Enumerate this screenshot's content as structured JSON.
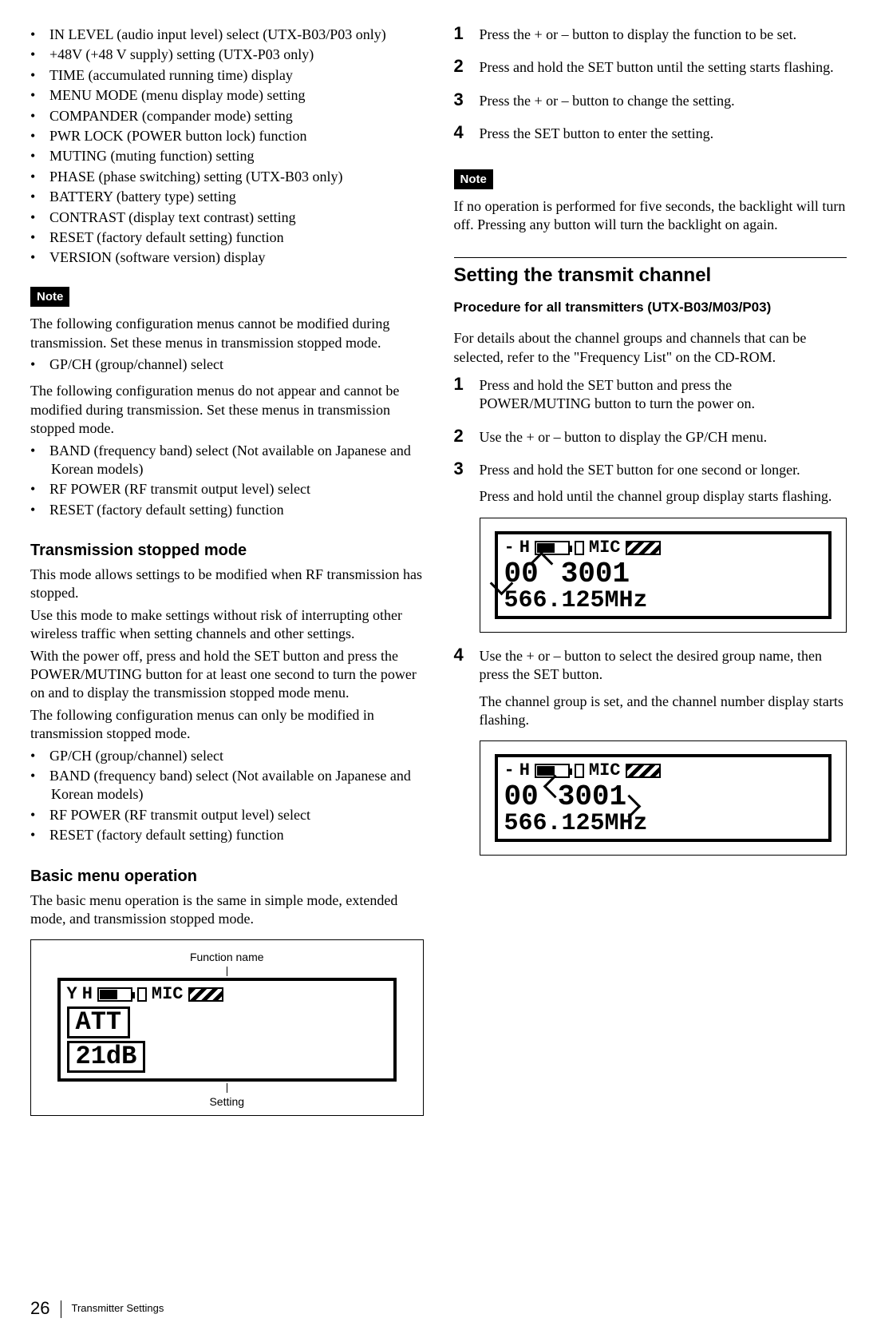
{
  "leftColumn": {
    "topBullets": [
      "IN LEVEL (audio input level) select (UTX-B03/P03 only)",
      "+48V (+48 V supply) setting (UTX-P03 only)",
      "TIME (accumulated running time) display",
      "MENU MODE (menu display mode) setting",
      "COMPANDER (compander mode) setting",
      "PWR LOCK (POWER button lock) function",
      "MUTING (muting function) setting",
      "PHASE (phase switching) setting (UTX-B03 only)",
      "BATTERY (battery type) setting",
      "CONTRAST (display text contrast) setting",
      "RESET (factory default setting) function",
      "VERSION (software version) display"
    ],
    "noteLabel": "Note",
    "note1p1": "The following configuration menus cannot be modified during transmission. Set these menus in transmission stopped mode.",
    "note1b": [
      "GP/CH (group/channel) select"
    ],
    "note1p2": "The following configuration menus do not appear and cannot be modified during transmission. Set these menus in transmission stopped mode.",
    "note1b2": [
      "BAND (frequency band) select (Not available on Japanese and Korean models)",
      "RF POWER (RF transmit output level) select",
      "RESET (factory default setting) function"
    ],
    "tsmHeading": "Transmission stopped mode",
    "tsmP1": "This mode allows settings to be modified when RF transmission has stopped.",
    "tsmP2": "Use this mode to make settings without risk of interrupting other wireless traffic when setting channels and other settings.",
    "tsmP3": "With the power off, press and hold the SET button and press the POWER/MUTING button for at least one second to turn the power on and to display the transmission stopped mode menu.",
    "tsmP4": "The following configuration menus can only be modified in transmission stopped mode.",
    "tsmBullets": [
      "GP/CH (group/channel) select",
      "BAND (frequency band) select (Not available on Japanese and Korean models)",
      "RF POWER (RF transmit output level) select",
      "RESET (factory default setting) function"
    ],
    "bmoHeading": "Basic menu operation",
    "bmoP": "The basic menu operation is the same in simple mode, extended mode, and transmission stopped mode.",
    "fig1": {
      "topLabel": "Function name",
      "botLabel": "Setting",
      "row1Prefix": "Y",
      "row1H": "H",
      "mic": "MIC",
      "line2": "ATT",
      "line3": "21dB"
    }
  },
  "rightColumn": {
    "stepsA": [
      "Press the + or – button to display the function to be set.",
      "Press and hold the SET button until the setting starts flashing.",
      "Press the + or – button to change the setting.",
      "Press the SET button to enter the setting."
    ],
    "noteLabel": "Note",
    "noteAp": "If no operation is performed for five seconds, the backlight will turn off. Pressing any button will turn the backlight on again.",
    "h1": "Setting the transmit channel",
    "sub": "Procedure for all transmitters (UTX-B03/M03/P03)",
    "introP": "For details about the channel groups and channels that can be selected, refer to the \"Frequency List\" on the CD-ROM.",
    "stepsB": {
      "s1": "Press and hold the SET button and press the POWER/MUTING button to turn the power on.",
      "s2": "Use the + or – button to display the GP/CH menu.",
      "s3": "Press and hold the SET button for one second or longer.",
      "s3sub": "Press and hold until the channel group display starts flashing.",
      "s4": "Use the + or – button to select the desired group name, then press the SET button.",
      "s4sub": "The channel group is set, and the channel number display starts flashing."
    },
    "fig2": {
      "row1Prefix": "-",
      "row1H": "H",
      "mic": "MIC",
      "group": "00",
      "ch": "3001",
      "freq": "566.125MHz"
    },
    "fig3": {
      "row1Prefix": "-",
      "row1H": "H",
      "mic": "MIC",
      "group": "00",
      "ch": "3001",
      "freq": "566.125MHz"
    }
  },
  "footer": {
    "pageNum": "26",
    "caption": "Transmitter Settings"
  }
}
